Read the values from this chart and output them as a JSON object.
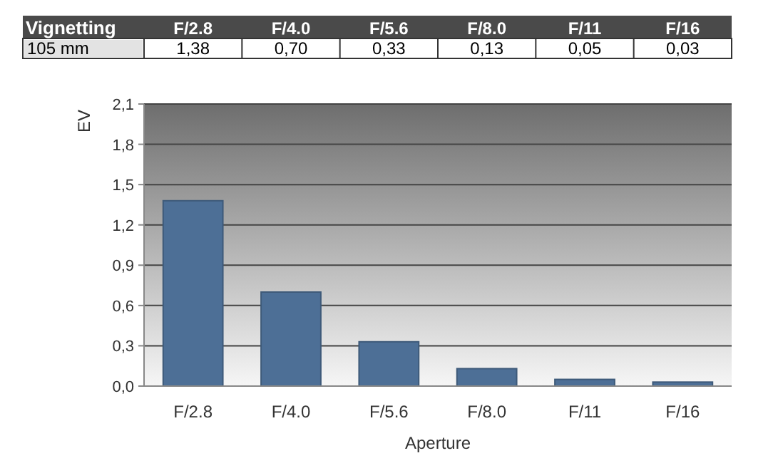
{
  "chart_data": {
    "type": "bar",
    "title": "Vignetting",
    "subtitle": "105 mm",
    "xlabel": "Aperture",
    "ylabel": "EV",
    "categories": [
      "F/2.8",
      "F/4.0",
      "F/5.6",
      "F/8.0",
      "F/11",
      "F/16"
    ],
    "values": [
      1.38,
      0.7,
      0.33,
      0.13,
      0.05,
      0.03
    ],
    "value_labels": [
      "1,38",
      "0,70",
      "0,33",
      "0,13",
      "0,05",
      "0,03"
    ],
    "color": "#4d6f96",
    "ylim": [
      0,
      2.1
    ],
    "yticks": [
      {
        "value": 0,
        "label": "0,0"
      },
      {
        "value": 0.3,
        "label": "0,3"
      },
      {
        "value": 0.6,
        "label": "0,6"
      },
      {
        "value": 0.9,
        "label": "0,9"
      },
      {
        "value": 1.2,
        "label": "1,2"
      },
      {
        "value": 1.5,
        "label": "1,5"
      },
      {
        "value": 1.8,
        "label": "1,8"
      },
      {
        "value": 2.1,
        "label": "2,1"
      }
    ],
    "grid": "y"
  }
}
